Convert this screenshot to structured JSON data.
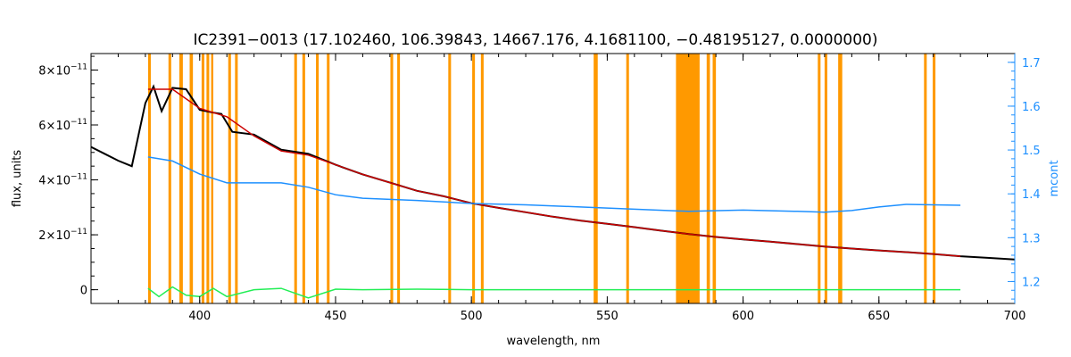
{
  "chart_data": {
    "type": "line",
    "title": "IC2391−0013    (17.102460, 106.39843, 14667.176, 4.1681100, −0.48195127, 0.0000000)",
    "xlabel": "wavelength, nm",
    "ylabel": "flux, units",
    "y2label": "mcont",
    "xlim": [
      360,
      700
    ],
    "ylim": [
      -0.5,
      8.6
    ],
    "y2lim": [
      1.15,
      1.72
    ],
    "x_ticks": [
      "400",
      "450",
      "500",
      "550",
      "600",
      "650",
      "700"
    ],
    "y_ticks": [
      {
        "value": 8,
        "mant": "8×10",
        "exp": "−11"
      },
      {
        "value": 6,
        "mant": "6×10",
        "exp": "−11"
      },
      {
        "value": 4,
        "mant": "4×10",
        "exp": "−11"
      },
      {
        "value": 2,
        "mant": "2×10",
        "exp": "−11"
      },
      {
        "value": 0,
        "mant": "0",
        "exp": ""
      }
    ],
    "y2_ticks": [
      "1.2",
      "1.3",
      "1.4",
      "1.5",
      "1.6",
      "1.7"
    ],
    "y_scale_note": "left axis in units of 1e-11",
    "masked_regions": [
      [
        381.0,
        382.0
      ],
      [
        388.5,
        389.5
      ],
      [
        392.5,
        393.8
      ],
      [
        396.3,
        397.5
      ],
      [
        400.7,
        401.7
      ],
      [
        402.5,
        403.5
      ],
      [
        404.2,
        405.0
      ],
      [
        410.5,
        411.5
      ],
      [
        413.0,
        414.0
      ],
      [
        434.8,
        435.8
      ],
      [
        437.8,
        438.8
      ],
      [
        442.8,
        443.8
      ],
      [
        446.8,
        447.8
      ],
      [
        470.2,
        471.2
      ],
      [
        472.7,
        473.7
      ],
      [
        491.5,
        492.5
      ],
      [
        500.3,
        501.3
      ],
      [
        503.5,
        504.5
      ],
      [
        545.0,
        546.5
      ],
      [
        557.0,
        558.0
      ],
      [
        575.3,
        584.0
      ],
      [
        586.6,
        587.8
      ],
      [
        588.8,
        590.0
      ],
      [
        627.5,
        628.5
      ],
      [
        630.0,
        631.0
      ],
      [
        635.0,
        636.5
      ],
      [
        666.6,
        667.6
      ],
      [
        669.8,
        670.8
      ]
    ],
    "series": [
      {
        "color": "#000000",
        "x": [
          360,
          365,
          370,
          375,
          380,
          383,
          386,
          390,
          395,
          400,
          405,
          408,
          412,
          420,
          430,
          440,
          450,
          460,
          470,
          480,
          490,
          500,
          510,
          520,
          530,
          540,
          550,
          560,
          570,
          580,
          590,
          600,
          610,
          620,
          630,
          640,
          650,
          660,
          670,
          680,
          690,
          700
        ],
        "y": [
          5.2,
          4.95,
          4.7,
          4.5,
          6.8,
          7.4,
          6.5,
          7.35,
          7.3,
          6.55,
          6.45,
          6.4,
          5.75,
          5.65,
          5.1,
          4.95,
          4.55,
          4.2,
          3.9,
          3.6,
          3.4,
          3.15,
          2.98,
          2.82,
          2.66,
          2.52,
          2.4,
          2.28,
          2.15,
          2.03,
          1.92,
          1.83,
          1.75,
          1.66,
          1.57,
          1.5,
          1.43,
          1.37,
          1.3,
          1.22,
          1.16,
          1.1
        ]
      },
      {
        "color": "#cc0000",
        "x": [
          381,
          390,
          400,
          410,
          420,
          430,
          440,
          450,
          460,
          470,
          480,
          490,
          500,
          510,
          520,
          530,
          540,
          550,
          560,
          570,
          580,
          590,
          600,
          610,
          620,
          630,
          640,
          650,
          660,
          670,
          680
        ],
        "y": [
          7.3,
          7.3,
          6.6,
          6.3,
          5.6,
          5.05,
          4.9,
          4.55,
          4.2,
          3.9,
          3.6,
          3.4,
          3.15,
          2.98,
          2.82,
          2.66,
          2.52,
          2.4,
          2.28,
          2.15,
          2.03,
          1.92,
          1.83,
          1.75,
          1.66,
          1.57,
          1.5,
          1.43,
          1.37,
          1.3,
          1.22
        ]
      },
      {
        "color": "#1e90ff",
        "axis": "right",
        "x": [
          381,
          390,
          400,
          410,
          420,
          430,
          440,
          450,
          460,
          480,
          500,
          520,
          540,
          560,
          580,
          600,
          620,
          630,
          640,
          650,
          660,
          670,
          680
        ],
        "y": [
          1.484,
          1.475,
          1.445,
          1.425,
          1.425,
          1.425,
          1.415,
          1.398,
          1.39,
          1.385,
          1.378,
          1.375,
          1.37,
          1.365,
          1.36,
          1.363,
          1.36,
          1.358,
          1.362,
          1.37,
          1.376,
          1.375,
          1.374
        ]
      },
      {
        "color": "#22ee55",
        "x": [
          381,
          385,
          390,
          395,
          400,
          405,
          410,
          420,
          430,
          440,
          450,
          460,
          480,
          500,
          550,
          600,
          650,
          680
        ],
        "y": [
          0.05,
          -0.25,
          0.1,
          -0.2,
          -0.25,
          0.05,
          -0.25,
          0.0,
          0.05,
          -0.3,
          0.02,
          0.0,
          0.02,
          0.0,
          0.0,
          0.0,
          0.0,
          0.0
        ]
      }
    ],
    "colors": {
      "mask": "#ff9900",
      "right_axis": "#1e90ff",
      "axes": "#000000"
    }
  }
}
